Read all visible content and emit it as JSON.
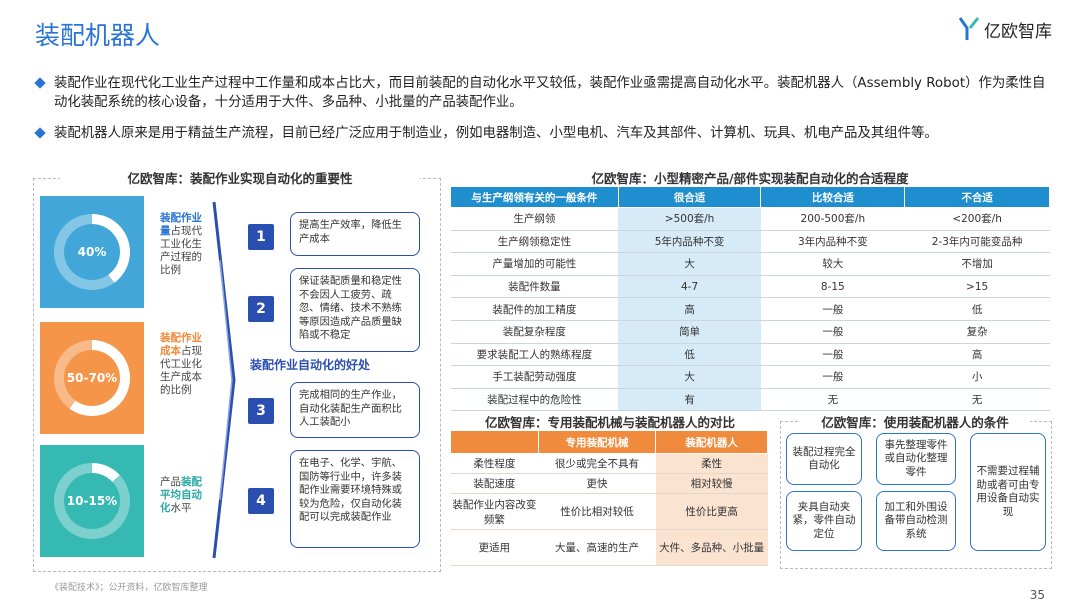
{
  "header": {
    "title": "装配机器人",
    "logo_text": "亿欧智库"
  },
  "bullets": [
    "装配作业在现代化工业生产过程中工作量和成本占比大，而目前装配的自动化水平又较低，装配作业亟需提高自动化水平。装配机器人（Assembly Robot）作为柔性自动化装配系统的核心设备，十分适用于大件、多品种、小批量的产品装配作业。",
    "装配机器人原来是用于精益生产流程，目前已经广泛应用于制造业，例如电器制造、小型电机、汽车及其部件、计算机、玩具、机电产品及其组件等。"
  ],
  "left_panel": {
    "title": "亿欧智库：装配作业实现自动化的重要性",
    "stats": [
      {
        "value": "40%",
        "color": "#42a7d8",
        "desc_hl": "装配作业量",
        "desc_rest": "占现代工业化生产过程的比例"
      },
      {
        "value": "50-70%",
        "color": "#f5954a",
        "desc_hl": "装配作业成本",
        "desc_rest": "占现代工业化生产成本的比例"
      },
      {
        "value": "10-15%",
        "color": "#36b9b3",
        "desc_pre": "产品",
        "desc_hl": "装配平均自动化",
        "desc_rest": "水平"
      }
    ],
    "benefits_label": "装配作业自动化的好处",
    "benefits": [
      {
        "num": "1",
        "text": "提高生产效率，降低生产成本"
      },
      {
        "num": "2",
        "text": "保证装配质量和稳定性不会因人工疲劳、疏忽、情绪、技术不熟练等原因造成产品质量缺陷或不稳定"
      },
      {
        "num": "3",
        "text": "完成相同的生产作业，自动化装配生产面积比人工装配小"
      },
      {
        "num": "4",
        "text": "在电子、化学、宇航、国防等行业中，许多装配作业需要环境特殊或较为危险，仅自动化装配可以完成装配作业"
      }
    ]
  },
  "table_a": {
    "title": "亿欧智库：小型精密产品/部件实现装配自动化的合适程度",
    "headers": [
      "与生产纲领有关的一般条件",
      "很合适",
      "比较合适",
      "不合适"
    ],
    "rows": [
      [
        "生产纲领",
        ">500套/h",
        "200-500套/h",
        "<200套/h"
      ],
      [
        "生产纲领稳定性",
        "5年内品种不变",
        "3年内品种不变",
        "2-3年内可能变品种"
      ],
      [
        "产量增加的可能性",
        "大",
        "较大",
        "不增加"
      ],
      [
        "装配件数量",
        "4-7",
        "8-15",
        ">15"
      ],
      [
        "装配件的加工精度",
        "高",
        "一般",
        "低"
      ],
      [
        "装配复杂程度",
        "简单",
        "一般",
        "复杂"
      ],
      [
        "要求装配工人的熟练程度",
        "低",
        "一般",
        "高"
      ],
      [
        "手工装配劳动强度",
        "大",
        "一般",
        "小"
      ],
      [
        "装配过程中的危险性",
        "有",
        "无",
        "无"
      ]
    ]
  },
  "table_b": {
    "title": "亿欧智库：专用装配机械与装配机器人的对比",
    "headers": [
      "",
      "专用装配机械",
      "装配机器人"
    ],
    "rows": [
      [
        "柔性程度",
        "很少或完全不具有",
        "柔性"
      ],
      [
        "装配速度",
        "更快",
        "相对较慢"
      ],
      [
        "装配作业内容改变频繁",
        "性价比相对较低",
        "性价比更高"
      ],
      [
        "更适用",
        "大量、高速的生产",
        "大件、多品种、小批量"
      ]
    ]
  },
  "conditions": {
    "title": "亿欧智库：使用装配机器人的条件",
    "items": [
      "装配过程完全自动化",
      "事先整理零件或自动化整理零件",
      "不需要过程辅助或者可由专用设备自动实现",
      "夹具自动夹紧，零件自动定位",
      "加工和外围设备带自动检测系统"
    ]
  },
  "footer": {
    "source": "《装配技术》；公开资料，亿欧智库整理",
    "page": "35"
  }
}
